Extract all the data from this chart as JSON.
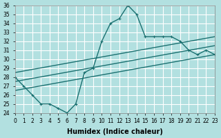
{
  "xlabel": "Humidex (Indice chaleur)",
  "ylabel": "",
  "bg_color": "#b2e0e0",
  "grid_color": "#ffffff",
  "line_color": "#1a7070",
  "xlim": [
    0,
    23
  ],
  "ylim": [
    24,
    36
  ],
  "xticks": [
    0,
    1,
    2,
    3,
    4,
    5,
    6,
    7,
    8,
    9,
    10,
    11,
    12,
    13,
    14,
    15,
    16,
    17,
    18,
    19,
    20,
    21,
    22,
    23
  ],
  "yticks": [
    24,
    25,
    26,
    27,
    28,
    29,
    30,
    31,
    32,
    33,
    34,
    35,
    36
  ],
  "line1_x": [
    0,
    1,
    2,
    3,
    4,
    5,
    6,
    7,
    8,
    9,
    10,
    11,
    12,
    13,
    14,
    15,
    16,
    17,
    18,
    19,
    20,
    21,
    22,
    23
  ],
  "line1_y": [
    28,
    27,
    26,
    25,
    25,
    24.5,
    24,
    25,
    28.5,
    29,
    32,
    34,
    34.5,
    36,
    35,
    32.5,
    32.5,
    32.5,
    32.5,
    32,
    31,
    30.5,
    31,
    30.5
  ],
  "line2_x": [
    0,
    23
  ],
  "line2_y": [
    26.5,
    30.5
  ],
  "line3_x": [
    0,
    23
  ],
  "line3_y": [
    27.5,
    31.5
  ],
  "line4_x": [
    0,
    23
  ],
  "line4_y": [
    28.5,
    32.5
  ]
}
